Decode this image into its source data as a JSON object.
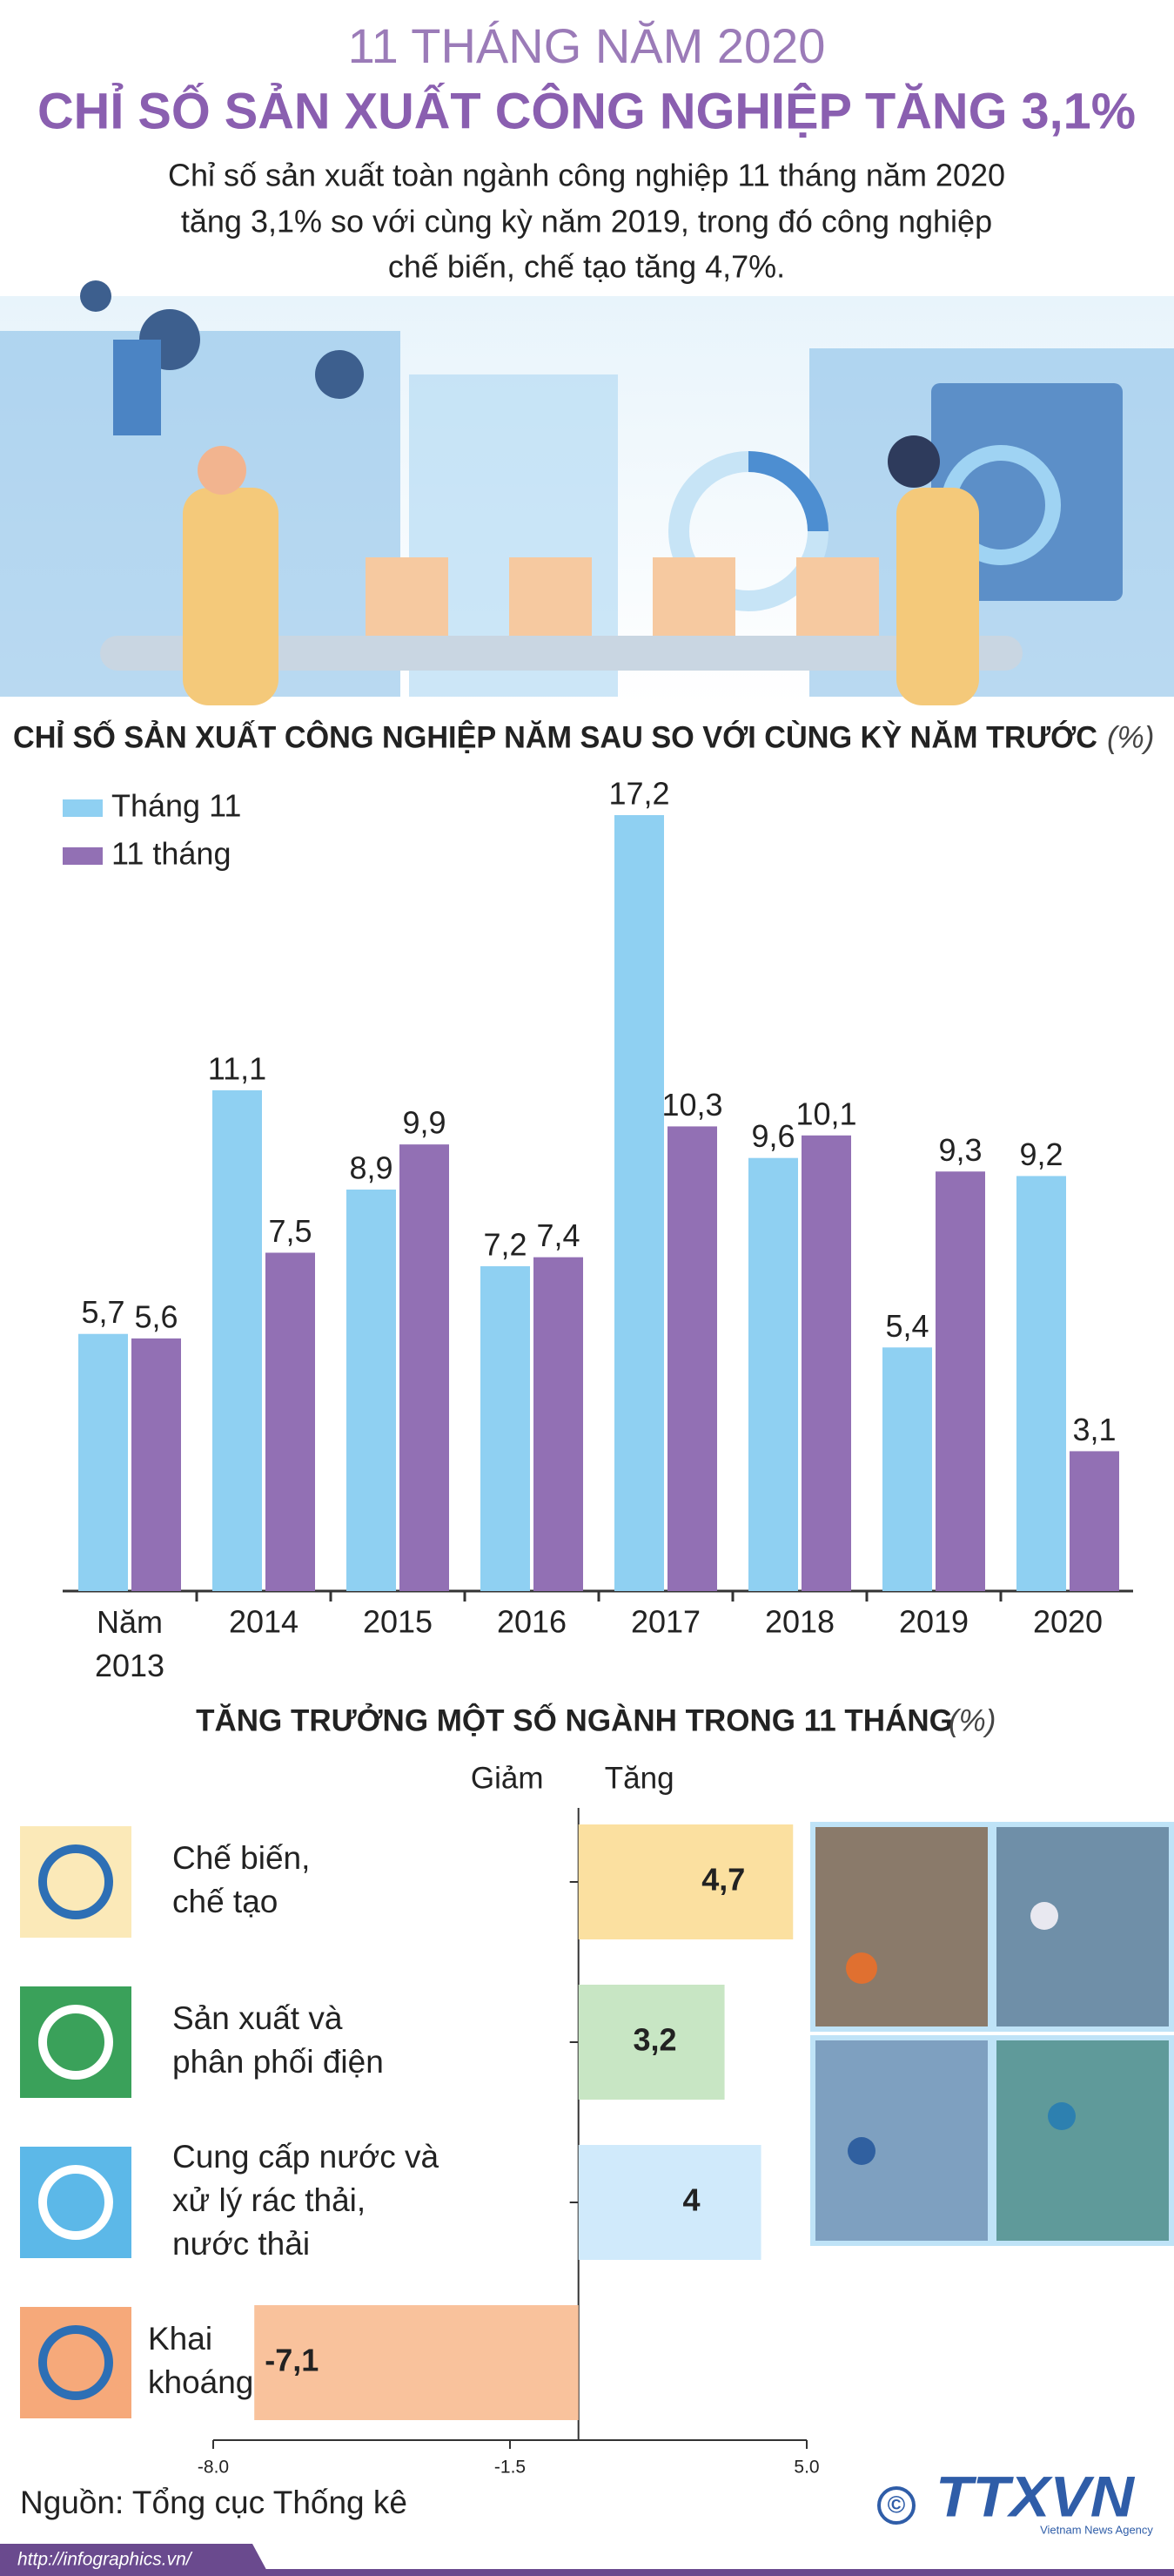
{
  "header": {
    "kicker": "11 THÁNG NĂM 2020",
    "title": "CHỈ SỐ SẢN XUẤT CÔNG NGHIỆP TĂNG 3,1%",
    "summary": [
      "Chỉ số sản xuất toàn ngành công nghiệp 11 tháng năm 2020",
      "tăng 3,1% so với cùng kỳ năm 2019, trong đó công nghiệp",
      "chế biến, chế tạo tăng 4,7%."
    ]
  },
  "chart_data": [
    {
      "type": "bar",
      "title": "CHỈ SỐ SẢN XUẤT CÔNG NGHIỆP NĂM SAU SO VỚI CÙNG KỲ NĂM TRƯỚC",
      "unit": "(%)",
      "categories": [
        "Năm\n2013",
        "2014",
        "2015",
        "2016",
        "2017",
        "2018",
        "2019",
        "2020"
      ],
      "series": [
        {
          "name": "Tháng 11",
          "color": "#8fd0f2",
          "values": [
            5.7,
            11.1,
            8.9,
            7.2,
            17.2,
            9.6,
            5.4,
            9.2
          ],
          "value_labels": [
            "5,7",
            "11,1",
            "8,9",
            "7,2",
            "17,2",
            "9,6",
            "5,4",
            "9,2"
          ]
        },
        {
          "name": "11 tháng",
          "color": "#9270b4",
          "values": [
            5.6,
            7.5,
            9.9,
            7.4,
            10.3,
            10.1,
            9.3,
            3.1
          ],
          "value_labels": [
            "5,6",
            "7,5",
            "9,9",
            "7,4",
            "10,3",
            "10,1",
            "9,3",
            "3,1"
          ]
        }
      ],
      "ylim": [
        0,
        17.2
      ],
      "legend": "top-left"
    },
    {
      "type": "hbar",
      "title": "TĂNG TRƯỞNG MỘT SỐ NGÀNH TRONG 11 THÁNG",
      "unit": "(%)",
      "direction_labels": [
        "Giảm",
        "Tăng"
      ],
      "categories": [
        "Chế biến,\nchế tạo",
        "Sản xuất và\nphân phối điện",
        "Cung cấp nước và\nxử lý rác thải,\nnước thải",
        "Khai\nkhoáng"
      ],
      "values": [
        4.7,
        3.2,
        4,
        -7.1
      ],
      "value_labels": [
        "4,7",
        "3,2",
        "4",
        "-7,1"
      ],
      "colors": [
        "#fbe0a0",
        "#c8e6c4",
        "#d0eafb",
        "#f9c29c"
      ],
      "xlim": [
        -8,
        5
      ],
      "xticks": [
        {
          "value": -8,
          "label": "-8.0"
        },
        {
          "value": -1.5,
          "label": "-1.5"
        },
        {
          "value": 5,
          "label": "5.0"
        }
      ]
    }
  ],
  "footer": {
    "source": "Nguồn: Tổng cục Thống kê",
    "url": "http://infographics.vn/",
    "copyright": "©",
    "logo": "TTXVN",
    "agency": "Vietnam News Agency"
  }
}
